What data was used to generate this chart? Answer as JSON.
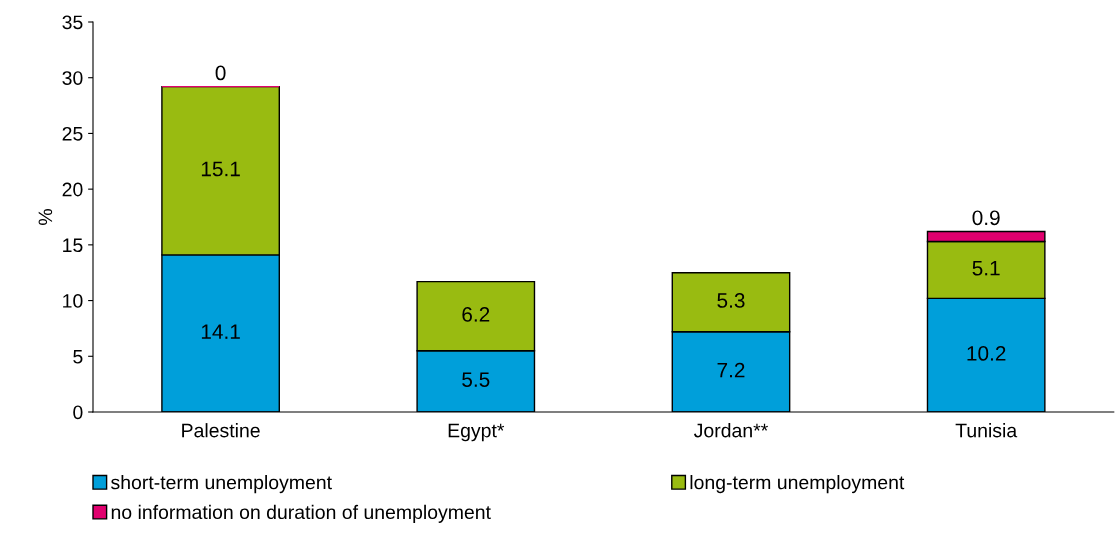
{
  "chart_data": {
    "type": "bar",
    "stacked": true,
    "ylabel": "%",
    "categories": [
      "Palestine",
      "Egypt*",
      "Jordan**",
      "Tunisia"
    ],
    "series": [
      {
        "name": "short-term unemployment",
        "color": "#009fda",
        "values": [
          14.1,
          5.5,
          7.2,
          10.2
        ]
      },
      {
        "name": "long-term unemployment",
        "color": "#99bb11",
        "values": [
          15.1,
          6.2,
          5.3,
          5.1
        ]
      },
      {
        "name": "no information on duration of unemployment",
        "color": "#e0006e",
        "values": [
          0,
          null,
          null,
          0.9
        ]
      }
    ],
    "ylim": [
      0,
      35
    ],
    "yticks": [
      0,
      5,
      10,
      15,
      20,
      25,
      30,
      35
    ],
    "data_labels": true,
    "grid": false,
    "legend": "bottom"
  }
}
